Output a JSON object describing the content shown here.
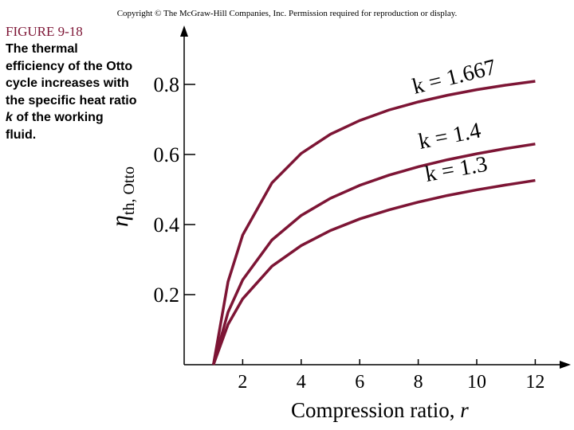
{
  "header": {
    "copyright": "Copyright © The McGraw-Hill Companies, Inc. Permission required for reproduction or display."
  },
  "figure": {
    "number": "FIGURE 9-18",
    "caption": [
      "The thermal efficiency of the Otto cycle increases with the specific heat ratio ",
      "k",
      " of the working fluid."
    ]
  },
  "chart_data": {
    "type": "line",
    "xlabel": "Compression ratio,",
    "xlabel_variable": "r",
    "ylabel": "η",
    "ylabel_subscript": "th, Otto",
    "x": [
      1,
      1.5,
      2,
      3,
      4,
      5,
      6,
      7,
      8,
      9,
      10,
      11,
      12
    ],
    "series": [
      {
        "name": "k = 1.667",
        "color": "#7d1535",
        "values": [
          0,
          0.237,
          0.37,
          0.519,
          0.603,
          0.658,
          0.697,
          0.727,
          0.75,
          0.769,
          0.785,
          0.798,
          0.809
        ]
      },
      {
        "name": "k = 1.4",
        "color": "#7d1535",
        "values": [
          0,
          0.15,
          0.242,
          0.356,
          0.426,
          0.475,
          0.512,
          0.541,
          0.565,
          0.585,
          0.602,
          0.617,
          0.63
        ]
      },
      {
        "name": "k = 1.3",
        "color": "#7d1535",
        "values": [
          0,
          0.115,
          0.188,
          0.281,
          0.34,
          0.383,
          0.416,
          0.442,
          0.464,
          0.483,
          0.499,
          0.513,
          0.526
        ]
      }
    ],
    "xlim": [
      0,
      13.2
    ],
    "ylim": [
      0,
      0.95
    ],
    "xticks": [
      2,
      4,
      6,
      8,
      10,
      12
    ],
    "yticks": [
      0.2,
      0.4,
      0.6,
      0.8
    ]
  }
}
